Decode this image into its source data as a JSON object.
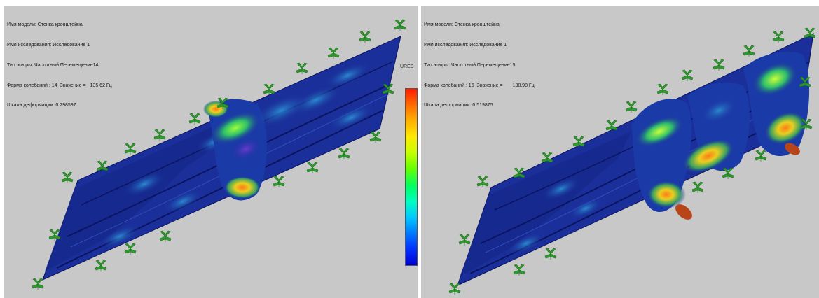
{
  "left": {
    "model_label": "Имя модели: Стенка кронштейна",
    "study_label": "Имя исследования: Исследование 1",
    "plot_type_label": "Тип эпюры: Частотный Перемещение14",
    "mode_label": "Форма колебаний : 14  Значение =",
    "mode_value": "135.62 Гц",
    "scale_label": "Шкала деформации: 0.298597"
  },
  "right": {
    "model_label": "Имя модели: Стенка кронштейна",
    "study_label": "Имя исследования: Исследование 1",
    "plot_type_label": "Тип эпюры: Частотный Перемещение15",
    "mode_label": "Форма колебаний : 15  Значение =",
    "mode_value": "138.98 Гц",
    "scale_label": "Шкала деформации: 0.519875"
  },
  "legend": {
    "title": "URES"
  },
  "colors": {
    "background": "#c8c8c8",
    "plate_blue": "#1a2f9a",
    "plate_dark": "#0f1f78",
    "fixture_green": "#2e9a2e",
    "accent_red": "#ff1a00"
  }
}
